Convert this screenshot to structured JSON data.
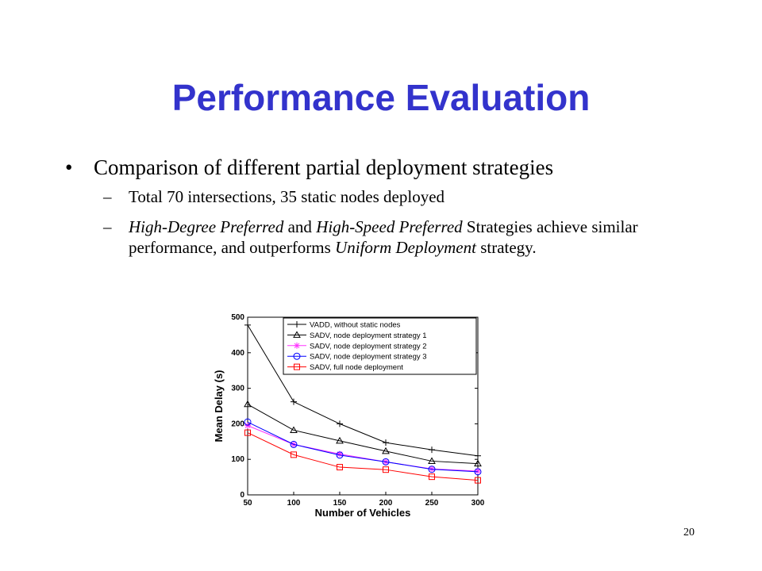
{
  "slide": {
    "title": "Performance Evaluation",
    "bullet": "Comparison of different partial deployment strategies",
    "sub_dash": "–",
    "sub1": "Total 70 intersections, 35 static nodes deployed",
    "sub2_parts": [
      {
        "text": "High-Degree Preferred",
        "italic": true
      },
      {
        "text": " and ",
        "italic": false
      },
      {
        "text": "High-Speed Preferred",
        "italic": true
      },
      {
        "text": " Strategies achieve similar performance, and outperforms ",
        "italic": false
      },
      {
        "text": "Uniform Deployment",
        "italic": true
      },
      {
        "text": " strategy.",
        "italic": false
      }
    ],
    "page_number": "20"
  },
  "chart_data": {
    "type": "line",
    "xlabel": "Number of Vehicles",
    "ylabel": "Mean Delay (s)",
    "x": [
      50,
      100,
      150,
      200,
      250,
      300
    ],
    "xlim": [
      50,
      300
    ],
    "ylim": [
      0,
      500
    ],
    "xticks": [
      50,
      100,
      150,
      200,
      250,
      300
    ],
    "yticks": [
      0,
      100,
      200,
      300,
      400,
      500
    ],
    "grid": false,
    "legend_position": "top-right",
    "series": [
      {
        "name": "VADD, without static nodes",
        "color": "#000000",
        "marker": "plus",
        "values": [
          478,
          262,
          200,
          147,
          127,
          110
        ]
      },
      {
        "name": "SADV, node deployment strategy 1",
        "color": "#000000",
        "marker": "triangle",
        "values": [
          255,
          182,
          152,
          123,
          95,
          88
        ]
      },
      {
        "name": "SADV, node deployment strategy 2",
        "color": "#ff33ff",
        "marker": "star",
        "values": [
          195,
          142,
          115,
          93,
          73,
          67
        ]
      },
      {
        "name": "SADV, node deployment strategy 3",
        "color": "#0000ff",
        "marker": "circle",
        "values": [
          205,
          142,
          112,
          93,
          72,
          65
        ]
      },
      {
        "name": "SADV, full node deployment",
        "color": "#ff0000",
        "marker": "square",
        "values": [
          175,
          113,
          78,
          71,
          51,
          41
        ]
      }
    ]
  }
}
